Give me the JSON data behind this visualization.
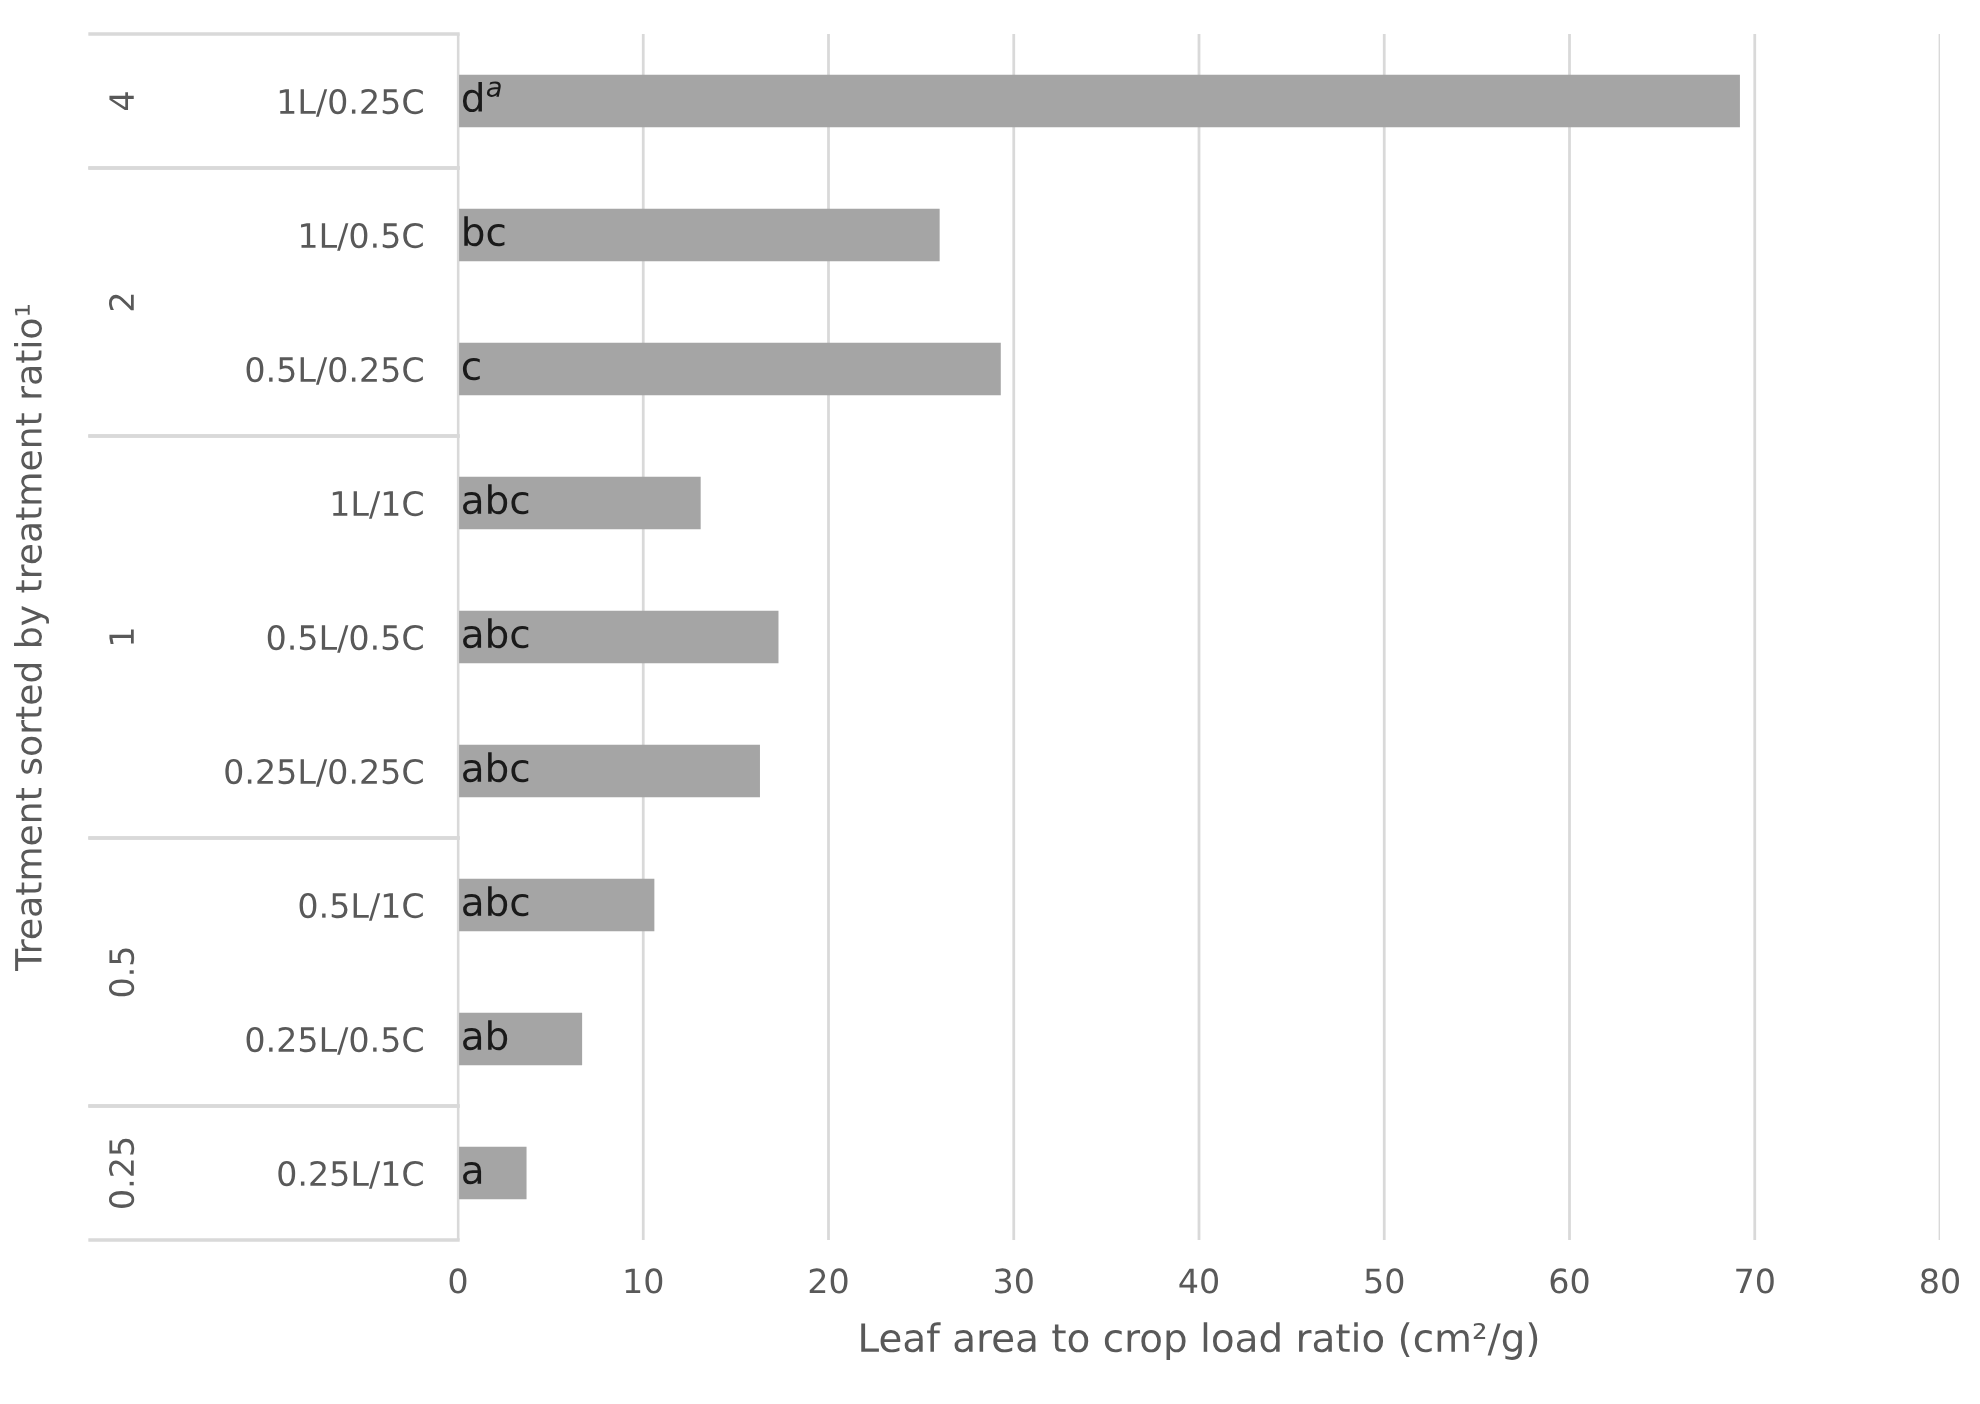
{
  "chart_data": {
    "type": "bar",
    "orientation": "horizontal",
    "xlabel": "Leaf area to crop load ratio (cm²/g)",
    "ylabel": "Treatment sorted by treatment ratio¹",
    "categories": [
      "1L/0.25C",
      "1L/0.5C",
      "0.5L/0.25C",
      "1L/1C",
      "0.5L/0.5C",
      "0.25L/0.25C",
      "0.5L/1C",
      "0.25L/0.5C",
      "0.25L/1C"
    ],
    "series": [
      {
        "color": "#a5a5a5",
        "values": [
          69.2,
          null,
          null,
          null,
          null,
          null,
          null,
          null,
          null
        ],
        "value_labels": [
          "d$^{a}$",
          null,
          null,
          null,
          null,
          null,
          null,
          null,
          null
        ]
      },
      {
        "color": "#a5a5a5",
        "values": [
          null,
          26.0,
          29.3,
          null,
          null,
          null,
          null,
          null,
          null
        ],
        "value_labels": [
          null,
          "bc",
          "c",
          null,
          null,
          null,
          null,
          null,
          null
        ]
      },
      {
        "color": "#a5a5a5",
        "values": [
          null,
          null,
          null,
          13.1,
          17.3,
          16.3,
          null,
          null,
          null
        ],
        "value_labels": [
          null,
          null,
          null,
          "abc",
          "abc",
          "abc",
          null,
          null,
          null
        ]
      },
      {
        "color": "#a5a5a5",
        "values": [
          null,
          null,
          null,
          null,
          null,
          null,
          10.6,
          6.7,
          null
        ],
        "value_labels": [
          null,
          null,
          null,
          null,
          null,
          null,
          "abc",
          "ab",
          null
        ]
      },
      {
        "color": "#a5a5a5",
        "values": [
          null,
          null,
          null,
          null,
          null,
          null,
          null,
          null,
          3.7
        ],
        "value_labels": [
          null,
          null,
          null,
          null,
          null,
          null,
          null,
          null,
          "a"
        ]
      }
    ],
    "xlim": [
      0,
      80
    ],
    "xticks": [
      0,
      10,
      20,
      30,
      40,
      50,
      60,
      70,
      80
    ],
    "grid": "x",
    "annotations": [
      "4",
      "2",
      "1",
      "0.5",
      "0.25"
    ]
  }
}
